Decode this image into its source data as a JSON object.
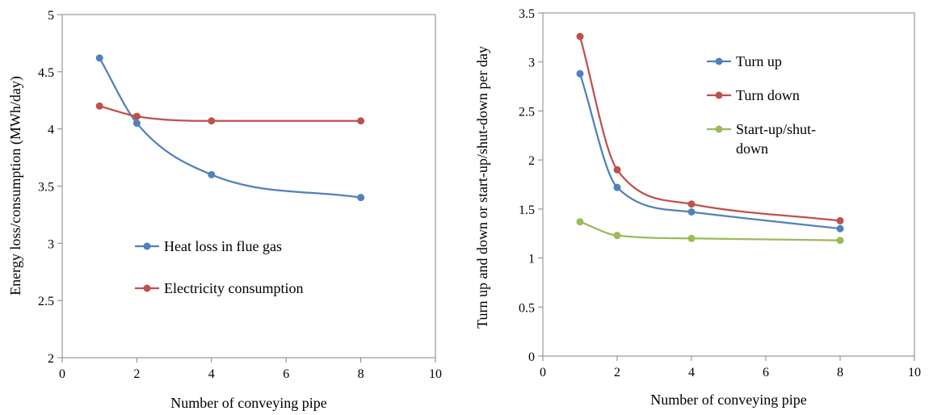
{
  "chart_data": [
    {
      "type": "line",
      "title": "",
      "xlabel": "Number of conveying pipe",
      "ylabel": "Energy loss/consumption (MWh/day)",
      "xlim": [
        0,
        10
      ],
      "ylim": [
        2,
        5
      ],
      "xticks": [
        0,
        2,
        4,
        6,
        8,
        10
      ],
      "yticks": [
        2,
        2.5,
        3,
        3.5,
        4,
        4.5,
        5
      ],
      "grid": false,
      "legend_position": "center",
      "series": [
        {
          "name": "Heat loss in flue gas",
          "color": "#4f81bd",
          "points": [
            [
              1,
              4.62
            ],
            [
              2,
              4.05
            ],
            [
              4,
              3.6
            ],
            [
              8,
              3.4
            ]
          ]
        },
        {
          "name": "Electricity consumption",
          "color": "#c0504d",
          "points": [
            [
              1,
              4.2
            ],
            [
              2,
              4.11
            ],
            [
              4,
              4.07
            ],
            [
              8,
              4.07
            ]
          ]
        }
      ]
    },
    {
      "type": "line",
      "title": "",
      "xlabel": "Number of conveying pipe",
      "ylabel": "Turn up and down or start-up/shut-down per day",
      "xlim": [
        0,
        10
      ],
      "ylim": [
        0,
        3.5
      ],
      "xticks": [
        0,
        2,
        4,
        6,
        8,
        10
      ],
      "yticks": [
        0,
        0.5,
        1,
        1.5,
        2,
        2.5,
        3,
        3.5
      ],
      "grid": false,
      "legend_position": "top-right",
      "series": [
        {
          "name": "Turn up",
          "color": "#4f81bd",
          "points": [
            [
              1,
              2.88
            ],
            [
              2,
              1.72
            ],
            [
              4,
              1.47
            ],
            [
              8,
              1.3
            ]
          ]
        },
        {
          "name": "Turn down",
          "color": "#c0504d",
          "points": [
            [
              1,
              3.26
            ],
            [
              2,
              1.9
            ],
            [
              4,
              1.55
            ],
            [
              8,
              1.38
            ]
          ]
        },
        {
          "name_lines": [
            "Start-up/shut-",
            "down"
          ],
          "color": "#9bbb59",
          "points": [
            [
              1,
              1.37
            ],
            [
              2,
              1.23
            ],
            [
              4,
              1.2
            ],
            [
              8,
              1.18
            ]
          ]
        }
      ]
    }
  ]
}
